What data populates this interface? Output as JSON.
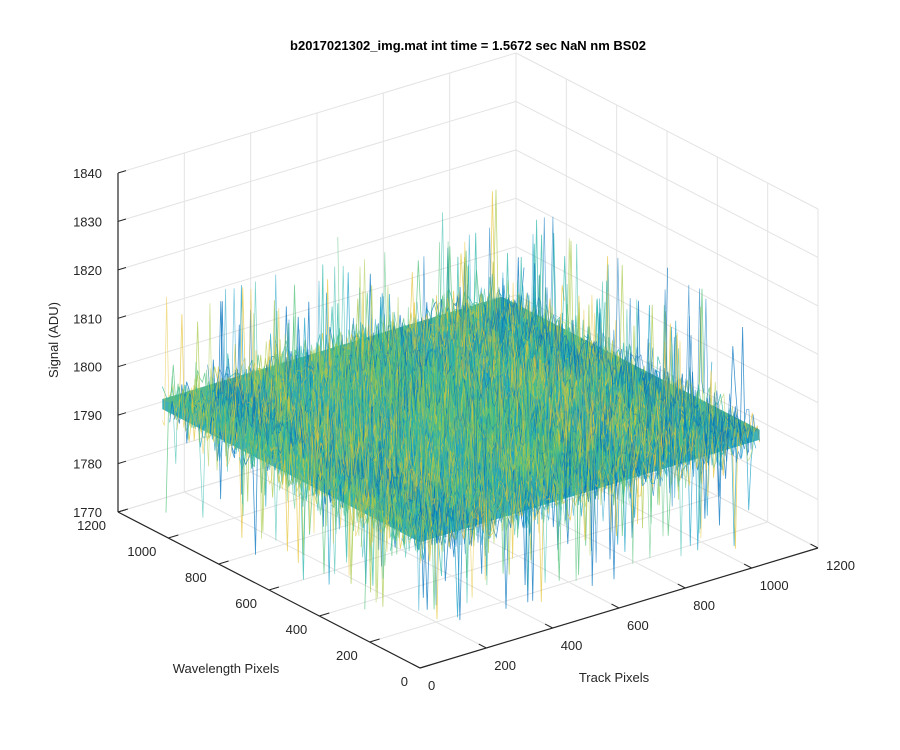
{
  "chart_data": {
    "type": "surface3d",
    "title": "b2017021302_img.mat int time = 1.5672 sec  NaN nm BS02",
    "xlabel": "Track Pixels",
    "ylabel": "Wavelength Pixels",
    "zlabel": "Signal (ADU)",
    "xlim": [
      0,
      1200
    ],
    "ylim": [
      0,
      1200
    ],
    "zlim": [
      1770,
      1840
    ],
    "x_ticks": [
      "0",
      "200",
      "400",
      "600",
      "800",
      "1000",
      "1200"
    ],
    "y_ticks": [
      "0",
      "200",
      "400",
      "600",
      "800",
      "1000",
      "1200"
    ],
    "z_ticks": [
      "1770",
      "1780",
      "1790",
      "1800",
      "1810",
      "1820",
      "1830",
      "1840"
    ],
    "data_extent": {
      "x": [
        0,
        1024
      ],
      "y": [
        0,
        1024
      ]
    },
    "signal_mean": 1797,
    "signal_range": [
      1775,
      1832
    ],
    "grid": true,
    "colormap": [
      "#0072bd",
      "#1aa0c8",
      "#2ab7a9",
      "#52c17a",
      "#a9c94a",
      "#e6c43a"
    ]
  }
}
